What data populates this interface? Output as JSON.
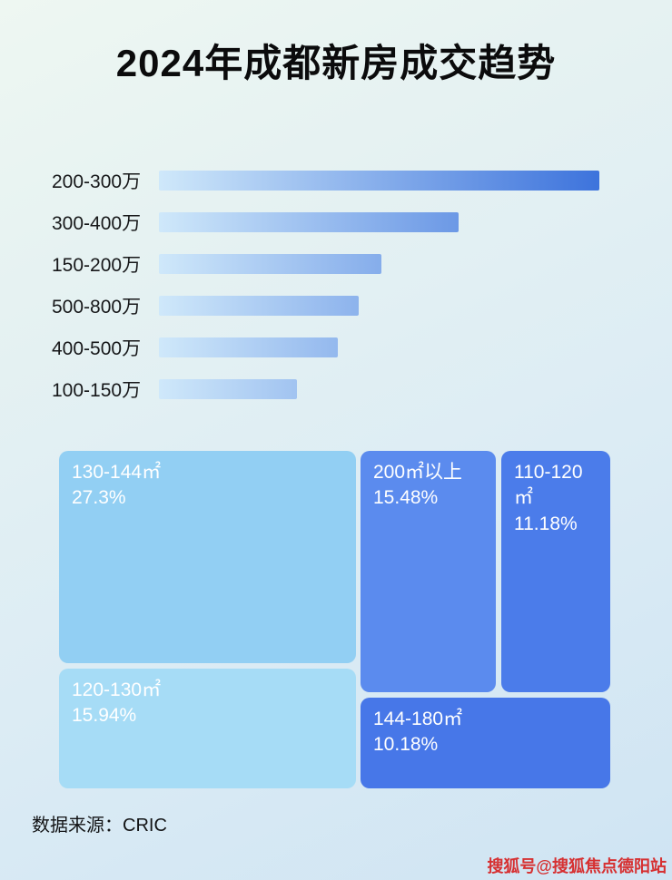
{
  "page": {
    "title": "2024年成都新房成交趋势",
    "source_label": "数据来源：CRIC",
    "watermark": "搜狐号@搜狐焦点德阳站"
  },
  "chart_data": [
    {
      "type": "bar",
      "orientation": "horizontal",
      "title": "2024年成都新房成交趋势",
      "categories": [
        "200-300万",
        "300-400万",
        "150-200万",
        "500-800万",
        "400-500万",
        "100-150万"
      ],
      "values": [
        100,
        68,
        50.5,
        45.4,
        40.6,
        31.3
      ],
      "value_note": "no numeric labels shown; values estimated as relative bar lengths with longest bar = 100",
      "xlabel": "",
      "ylabel": "",
      "grid": false,
      "legend": false,
      "bar_gradient": [
        "#cfe8fa",
        "#3d73dc"
      ]
    },
    {
      "type": "treemap",
      "title": "",
      "items": [
        {
          "label": "130-144㎡",
          "value": 27.3,
          "display": "27.3%",
          "color": "#92cff3"
        },
        {
          "label": "120-130㎡",
          "value": 15.94,
          "display": "15.94%",
          "color": "#a6dcf6"
        },
        {
          "label": "200㎡以上",
          "value": 15.48,
          "display": "15.48%",
          "color": "#5b8bee"
        },
        {
          "label": "110-120㎡",
          "value": 11.18,
          "display": "11.18%",
          "color": "#4b7cea"
        },
        {
          "label": "144-180㎡",
          "value": 10.18,
          "display": "10.18%",
          "color": "#4777e8"
        }
      ]
    }
  ]
}
